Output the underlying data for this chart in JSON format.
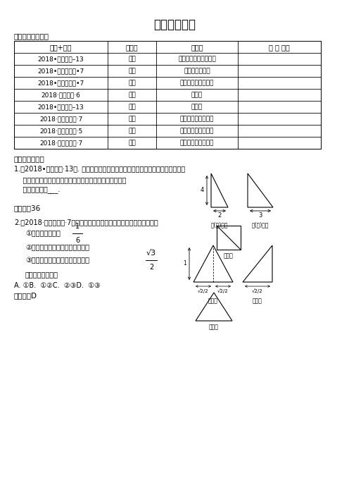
{
  "title": "十二、三视图",
  "section1": "（一）试题细目表",
  "section2": "（二）试题解析",
  "table_headers": [
    "区县+题号",
    "类　型",
    "考　点",
    "思 想 方法"
  ],
  "table_rows": [
    [
      "2018•西城期末–13",
      "填空",
      "三视图、几何体表面积",
      ""
    ],
    [
      "2018•海淀区期末•7",
      "选择",
      "三视图、三棱锥",
      ""
    ],
    [
      "2018•石景山期末•7",
      "选择",
      "三视图、几何体体积",
      ""
    ],
    [
      "2018·丰台期末·6",
      "选择",
      "三视图",
      ""
    ],
    [
      "2018•通州期末–13",
      "填空",
      "三视图",
      ""
    ],
    [
      "2018·房山区期末·7",
      "选择",
      "三视图、几何体体积",
      ""
    ],
    [
      "2018·朝阳区期末·5",
      "选择",
      "三视图、几何体体积",
      ""
    ],
    [
      "2018·东城区期末·7",
      "选择",
      "三视图、几何体体积",
      ""
    ]
  ],
  "q1_intro": "1.（2018•西城期末·13）. 从一个长方体中截取部分几何体，得到一个以原长方体的",
  "q1_line2": "    部分顶点为顶点的凸多面体，其三视图如图所示，该几何",
  "q1_line3": "    体的表面积是___.",
  "q1_answer": "【答案】36",
  "q2_intro": "2.（2018·海淀区期末·7）某三棱锥的三视图如图所示，则下列说法中：",
  "q2_opt1": "①三棱锥的体积为",
  "q2_opt2": "②三棱锥的四个面全是直角三角形",
  "q2_opt3": "③三棱锥的四个面的面积最大的是",
  "q2_opt4": "所有正确的说法是",
  "q2_choices": "A. ①B.  ①②C.  ②③D.  ①③",
  "q2_answer": "【答案】D",
  "bg_color": "#ffffff"
}
